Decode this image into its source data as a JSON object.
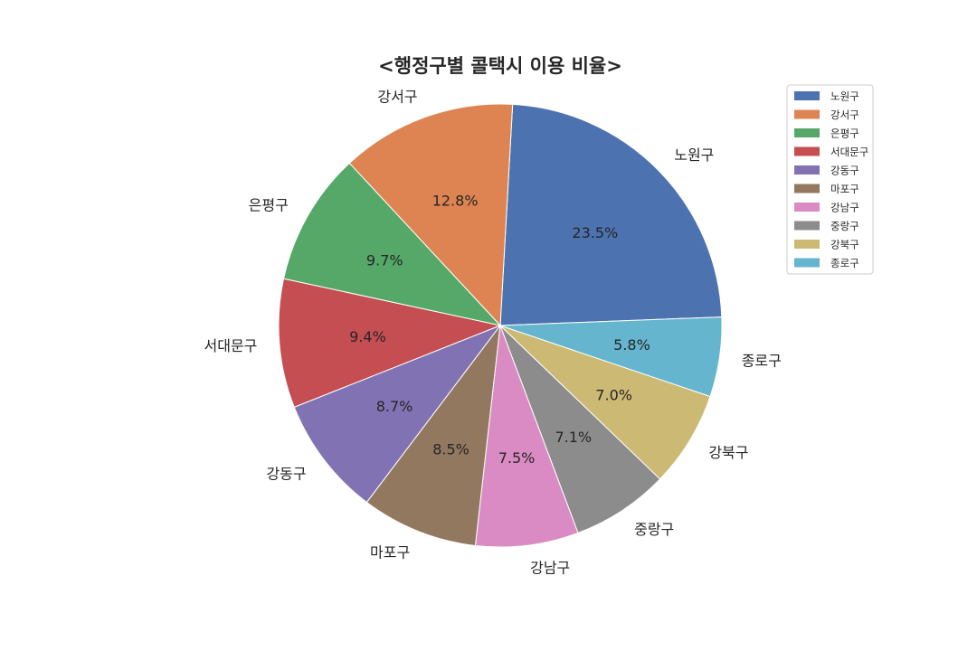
{
  "chart_data": {
    "type": "pie",
    "title": "<행정구별 콜택시 이용 비율>",
    "categories": [
      "노원구",
      "강서구",
      "은평구",
      "서대문구",
      "강동구",
      "마포구",
      "강남구",
      "중랑구",
      "강북구",
      "종로구"
    ],
    "values": [
      23.5,
      12.8,
      9.7,
      9.4,
      8.7,
      8.5,
      7.5,
      7.1,
      7.0,
      5.8
    ],
    "percent_labels": [
      "23.5%",
      "12.8%",
      "9.7%",
      "9.4%",
      "8.7%",
      "8.5%",
      "7.5%",
      "7.1%",
      "7.0%",
      "5.8%"
    ],
    "colors": [
      "#4c72b0",
      "#dd8452",
      "#55a868",
      "#c44e52",
      "#8172b3",
      "#937860",
      "#da8bc3",
      "#8c8c8c",
      "#ccb974",
      "#64b5cd"
    ],
    "start_angle_deg": 2.2,
    "direction": "counterclockwise",
    "legend": {
      "position": "top-right",
      "entries": [
        "노원구",
        "강서구",
        "은평구",
        "서대문구",
        "강동구",
        "마포구",
        "강남구",
        "중랑구",
        "강북구",
        "종로구"
      ]
    }
  }
}
